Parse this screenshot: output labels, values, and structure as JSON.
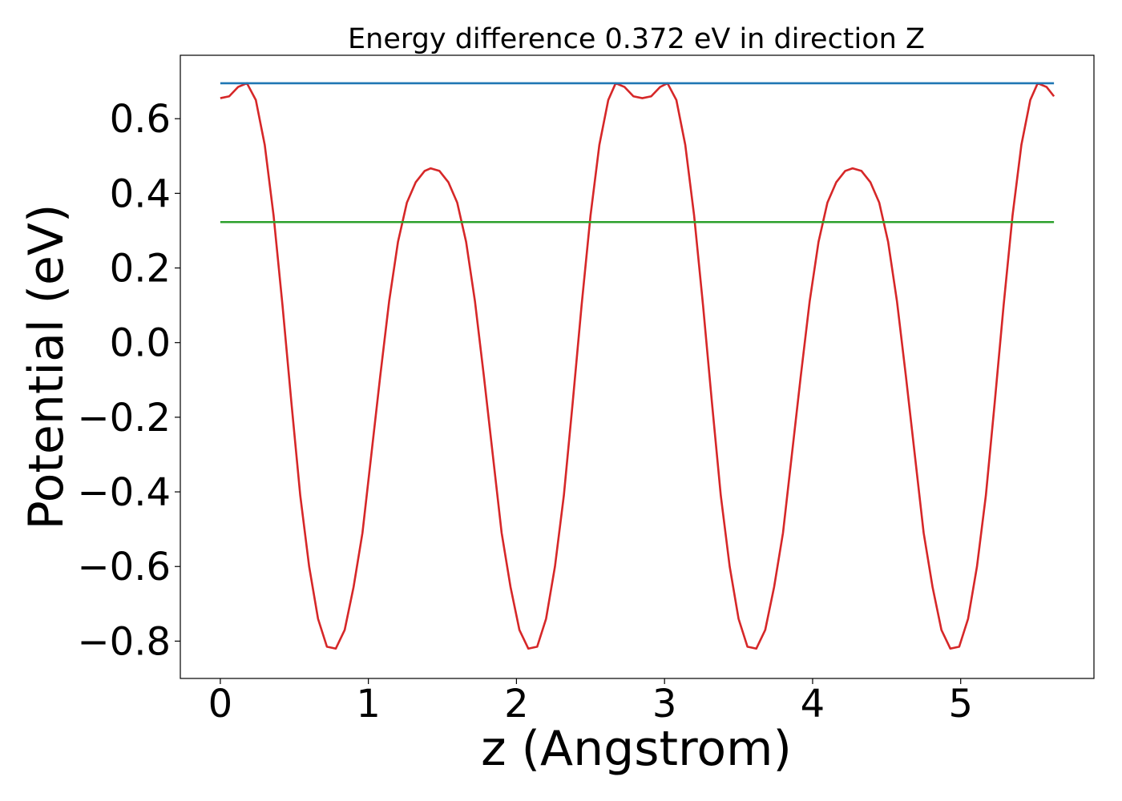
{
  "chart_data": {
    "type": "line",
    "title": "Energy difference 0.372 eV in direction Z",
    "xlabel": "z (Angstrom)",
    "ylabel": "Potential (eV)",
    "xlim": [
      -0.27,
      5.9
    ],
    "ylim": [
      -0.9,
      0.77
    ],
    "xticks": [
      {
        "value": 0,
        "label": "0"
      },
      {
        "value": 1,
        "label": "1"
      },
      {
        "value": 2,
        "label": "2"
      },
      {
        "value": 3,
        "label": "3"
      },
      {
        "value": 4,
        "label": "4"
      },
      {
        "value": 5,
        "label": "5"
      }
    ],
    "yticks": [
      {
        "value": 0.6,
        "label": "0.6"
      },
      {
        "value": 0.4,
        "label": "0.4"
      },
      {
        "value": 0.2,
        "label": "0.2"
      },
      {
        "value": 0.0,
        "label": "0.0"
      },
      {
        "value": -0.2,
        "label": "−0.2"
      },
      {
        "value": -0.4,
        "label": "−0.4"
      },
      {
        "value": -0.6,
        "label": "−0.6"
      },
      {
        "value": -0.8,
        "label": "−0.8"
      }
    ],
    "grid": false,
    "series": [
      {
        "color": "#d62728",
        "x": [
          0,
          0.06,
          0.12,
          0.18,
          0.24,
          0.3,
          0.36,
          0.42,
          0.48,
          0.54,
          0.6,
          0.66,
          0.72,
          0.78,
          0.84,
          0.9,
          0.96,
          1.02,
          1.08,
          1.14,
          1.2,
          1.26,
          1.32,
          1.38,
          1.42,
          1.48,
          1.54,
          1.6,
          1.66,
          1.72,
          1.78,
          1.84,
          1.9,
          1.96,
          2.02,
          2.08,
          2.14,
          2.2,
          2.26,
          2.32,
          2.38,
          2.44,
          2.5,
          2.56,
          2.62,
          2.67,
          2.73,
          2.79,
          2.85,
          2.91,
          2.97,
          3.02,
          3.08,
          3.14,
          3.2,
          3.26,
          3.32,
          3.38,
          3.44,
          3.5,
          3.56,
          3.62,
          3.68,
          3.74,
          3.8,
          3.86,
          3.92,
          3.98,
          4.04,
          4.1,
          4.16,
          4.22,
          4.27,
          4.33,
          4.39,
          4.45,
          4.51,
          4.57,
          4.63,
          4.69,
          4.75,
          4.81,
          4.87,
          4.93,
          4.99,
          5.05,
          5.11,
          5.17,
          5.23,
          5.29,
          5.35,
          5.41,
          5.47,
          5.52,
          5.58,
          5.63
        ],
        "y": [
          0.655,
          0.66,
          0.685,
          0.695,
          0.65,
          0.53,
          0.34,
          0.1,
          -0.16,
          -0.41,
          -0.6,
          -0.74,
          -0.815,
          -0.82,
          -0.77,
          -0.655,
          -0.51,
          -0.3,
          -0.09,
          0.11,
          0.27,
          0.375,
          0.43,
          0.46,
          0.467,
          0.46,
          0.43,
          0.375,
          0.27,
          0.11,
          -0.09,
          -0.3,
          -0.51,
          -0.655,
          -0.77,
          -0.82,
          -0.815,
          -0.74,
          -0.6,
          -0.41,
          -0.16,
          0.1,
          0.34,
          0.53,
          0.65,
          0.695,
          0.685,
          0.66,
          0.655,
          0.66,
          0.685,
          0.695,
          0.65,
          0.53,
          0.34,
          0.1,
          -0.16,
          -0.41,
          -0.6,
          -0.74,
          -0.815,
          -0.82,
          -0.77,
          -0.655,
          -0.51,
          -0.3,
          -0.09,
          0.11,
          0.27,
          0.375,
          0.43,
          0.46,
          0.467,
          0.46,
          0.43,
          0.375,
          0.27,
          0.11,
          -0.09,
          -0.3,
          -0.51,
          -0.655,
          -0.77,
          -0.82,
          -0.815,
          -0.74,
          -0.6,
          -0.41,
          -0.16,
          0.1,
          0.34,
          0.53,
          0.65,
          0.695,
          0.685,
          0.66
        ]
      },
      {
        "color": "#1f77b4",
        "x": [
          0,
          5.63
        ],
        "y": [
          0.695,
          0.695
        ]
      },
      {
        "color": "#2ca02c",
        "x": [
          0,
          5.63
        ],
        "y": [
          0.323,
          0.323
        ]
      }
    ]
  }
}
